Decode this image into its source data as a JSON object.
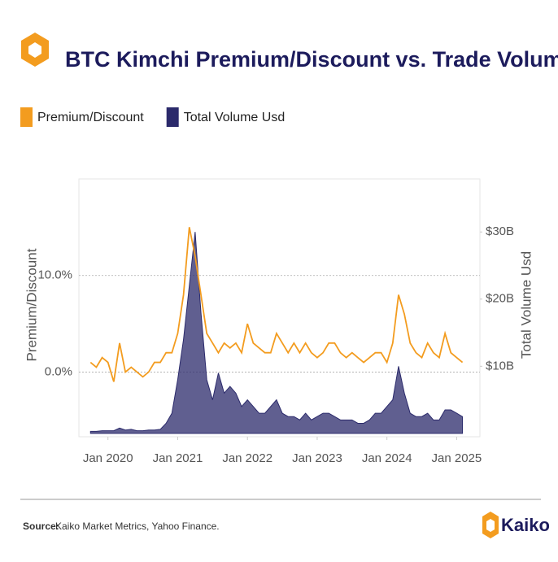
{
  "chart_data": {
    "type": "line-area",
    "title": "BTC Kimchi Premium/Discount vs. Trade Volumes",
    "y_label": "Premium/Discount",
    "y2_label": "Total Volume Usd",
    "source_label": "Source:",
    "source_text": "Kaiko Market Metrics, Yahoo Finance.",
    "brand": "Kaiko",
    "x": [
      "2019-10",
      "2019-11",
      "2019-12",
      "2020-01",
      "2020-02",
      "2020-03",
      "2020-04",
      "2020-05",
      "2020-06",
      "2020-07",
      "2020-08",
      "2020-09",
      "2020-10",
      "2020-11",
      "2020-12",
      "2021-01",
      "2021-02",
      "2021-03",
      "2021-04",
      "2021-05",
      "2021-06",
      "2021-07",
      "2021-08",
      "2021-09",
      "2021-10",
      "2021-11",
      "2021-12",
      "2022-01",
      "2022-02",
      "2022-03",
      "2022-04",
      "2022-05",
      "2022-06",
      "2022-07",
      "2022-08",
      "2022-09",
      "2022-10",
      "2022-11",
      "2022-12",
      "2023-01",
      "2023-02",
      "2023-03",
      "2023-04",
      "2023-05",
      "2023-06",
      "2023-07",
      "2023-08",
      "2023-09",
      "2023-10",
      "2023-11",
      "2023-12",
      "2024-01",
      "2024-02",
      "2024-03",
      "2024-04",
      "2024-05",
      "2024-06",
      "2024-07",
      "2024-08",
      "2024-09",
      "2024-10",
      "2024-11",
      "2024-12",
      "2025-01",
      "2025-02"
    ],
    "series": [
      {
        "name": "Premium/Discount",
        "color": "#f39c1f",
        "axis": "y",
        "values": [
          1,
          0.5,
          1.5,
          1,
          -1,
          3,
          0,
          0.5,
          0,
          -0.5,
          0,
          1,
          1,
          2,
          2,
          4,
          8,
          15,
          12,
          8,
          4,
          3,
          2,
          3,
          2.5,
          3,
          2,
          5,
          3,
          2.5,
          2,
          2,
          4,
          3,
          2,
          3,
          2,
          3,
          2,
          1.5,
          2,
          3,
          3,
          2,
          1.5,
          2,
          1.5,
          1,
          1.5,
          2,
          2,
          1,
          3,
          8,
          6,
          3,
          2,
          1.5,
          3,
          2,
          1.5,
          4,
          2,
          1.5,
          1
        ]
      },
      {
        "name": "Total Volume Usd",
        "color": "#2b2a6b",
        "axis": "y2",
        "values": [
          300000000.0,
          300000000.0,
          400000000.0,
          400000000.0,
          400000000.0,
          800000000.0,
          500000000.0,
          600000000.0,
          400000000.0,
          400000000.0,
          500000000.0,
          500000000.0,
          600000000.0,
          1500000000.0,
          3000000000.0,
          8000000000.0,
          14000000000.0,
          22000000000.0,
          30000000000.0,
          18000000000.0,
          8000000000.0,
          5000000000.0,
          9000000000.0,
          6000000000.0,
          7000000000.0,
          6000000000.0,
          4000000000.0,
          5000000000.0,
          4000000000.0,
          3000000000.0,
          3000000000.0,
          4000000000.0,
          5000000000.0,
          3000000000.0,
          2500000000.0,
          2500000000.0,
          2000000000.0,
          3000000000.0,
          2000000000.0,
          2500000000.0,
          3000000000.0,
          3000000000.0,
          2500000000.0,
          2000000000.0,
          2000000000.0,
          2000000000.0,
          1500000000.0,
          1500000000.0,
          2000000000.0,
          3000000000.0,
          3000000000.0,
          4000000000.0,
          5000000000.0,
          10000000000.0,
          6000000000.0,
          3000000000.0,
          2500000000.0,
          2500000000.0,
          3000000000.0,
          2000000000.0,
          2000000000.0,
          3500000000.0,
          3500000000.0,
          3000000000.0,
          2500000000.0
        ]
      }
    ],
    "xlim": [
      "2019-08",
      "2025-05"
    ],
    "xticks": [
      {
        "value": "2020-01",
        "label": "Jan 2020"
      },
      {
        "value": "2021-01",
        "label": "Jan 2021"
      },
      {
        "value": "2022-01",
        "label": "Jan 2022"
      },
      {
        "value": "2023-01",
        "label": "Jan 2023"
      },
      {
        "value": "2024-01",
        "label": "Jan 2024"
      },
      {
        "value": "2025-01",
        "label": "Jan 2025"
      }
    ],
    "ylim": [
      -6.7,
      20
    ],
    "yticks": [
      {
        "value": 0,
        "label": "0.0%"
      },
      {
        "value": 10,
        "label": "10.0%"
      }
    ],
    "y2lim": [
      -500000000.0,
      37900000000.0
    ],
    "y2ticks": [
      {
        "value": 10000000000.0,
        "label": "$10B"
      },
      {
        "value": 20000000000.0,
        "label": "$20B"
      },
      {
        "value": 30000000000.0,
        "label": "$30B"
      }
    ],
    "grid": true
  }
}
